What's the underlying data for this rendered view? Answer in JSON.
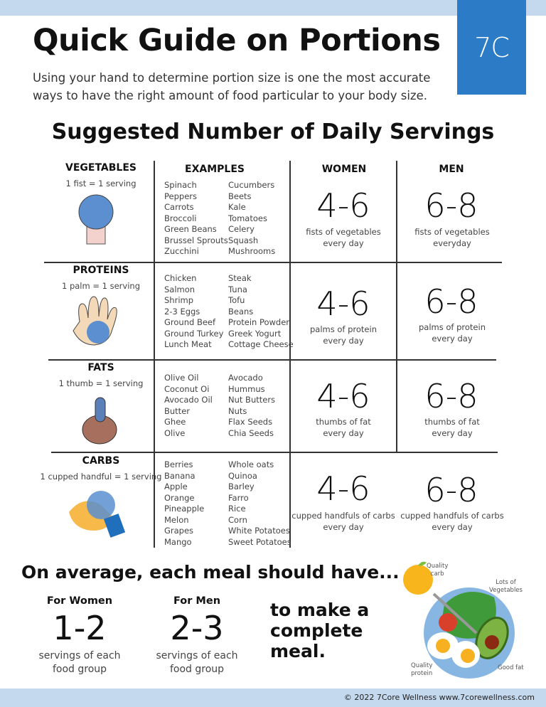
{
  "header": {
    "title": "Quick Guide on Portions",
    "subtitle": "Using your hand to determine portion size is one the most accurate ways to have the right amount of food particular to your body size.",
    "logo_text": "7C",
    "brand_color": "#2b7bc7"
  },
  "section_title": "Suggested Number of Daily Servings",
  "columns": {
    "examples": "EXAMPLES",
    "women": "WOMEN",
    "men": "MEN"
  },
  "groups": [
    {
      "name": "VEGETABLES",
      "rule": "1 fist = 1 serving",
      "icon": "fist-icon",
      "examples_left": [
        "Spinach",
        "Peppers",
        "Carrots",
        "Broccoli",
        "Green Beans",
        "Brussel Sprouts",
        "Zucchini"
      ],
      "examples_right": [
        "Cucumbers",
        "Beets",
        "Kale",
        "Tomatoes",
        "Celery",
        "Squash",
        "Mushrooms"
      ],
      "women": "4-6",
      "women_desc": [
        "fists of vegetables",
        "every day"
      ],
      "men": "6-8",
      "men_desc": [
        "fists of vegetables",
        "everyday"
      ]
    },
    {
      "name": "PROTEINS",
      "rule": "1 palm = 1 serving",
      "icon": "palm-icon",
      "examples_left": [
        "Chicken",
        "Salmon",
        "Shrimp",
        "2-3 Eggs",
        "Ground Beef",
        "Ground Turkey",
        "Lunch Meat"
      ],
      "examples_right": [
        "Steak",
        "Tuna",
        "Tofu",
        "Beans",
        "Protein Powder",
        "Greek Yogurt",
        "Cottage Cheese"
      ],
      "women": "4-6",
      "women_desc": [
        "palms of protein",
        "every day"
      ],
      "men": "6-8",
      "men_desc": [
        "palms of protein",
        "every day"
      ]
    },
    {
      "name": "FATS",
      "rule": "1 thumb = 1 serving",
      "icon": "thumb-icon",
      "examples_left": [
        "Olive Oil",
        "Coconut Oi",
        "Avocado Oil",
        "Butter",
        "Ghee",
        "Olive"
      ],
      "examples_right": [
        "Avocado",
        "Hummus",
        "Nut Butters",
        "Nuts",
        "Flax Seeds",
        "Chia Seeds"
      ],
      "women": "4-6",
      "women_desc": [
        "thumbs of fat",
        "every day"
      ],
      "men": "6-8",
      "men_desc": [
        "thumbs of fat",
        "every day"
      ]
    },
    {
      "name": "CARBS",
      "rule": "1 cupped handful = 1 serving",
      "icon": "cupped-hand-icon",
      "examples_left": [
        "Berries",
        "Banana",
        "Apple",
        "Orange",
        "Pineapple",
        "Melon",
        "Grapes",
        "Mango"
      ],
      "examples_right": [
        "Whole oats",
        "Quinoa",
        "Barley",
        "Farro",
        "Rice",
        "Corn",
        "White Potatoes",
        "Sweet Potatoes"
      ],
      "women": "4-6",
      "women_desc": [
        "cupped handfuls of carbs",
        "every day"
      ],
      "men": "6-8",
      "men_desc": [
        "cupped handfuls of carbs",
        "every day"
      ]
    }
  ],
  "meal": {
    "heading": "On average, each meal should have...",
    "women_label": "For Women",
    "women_value": "1-2",
    "women_desc": [
      "servings of each",
      "food group"
    ],
    "men_label": "For Men",
    "men_value": "2-3",
    "men_desc": [
      "servings of each",
      "food group"
    ],
    "complete": [
      "to make a",
      "complete",
      "meal."
    ],
    "plate_labels": {
      "carb": [
        "Quality",
        "carb"
      ],
      "veg": [
        "Lots of",
        "Vegetables"
      ],
      "protein": [
        "Quality",
        "protein"
      ],
      "fat": "Good fat"
    }
  },
  "footer": "© 2022 7Core Wellness  www.7corewellness.com"
}
